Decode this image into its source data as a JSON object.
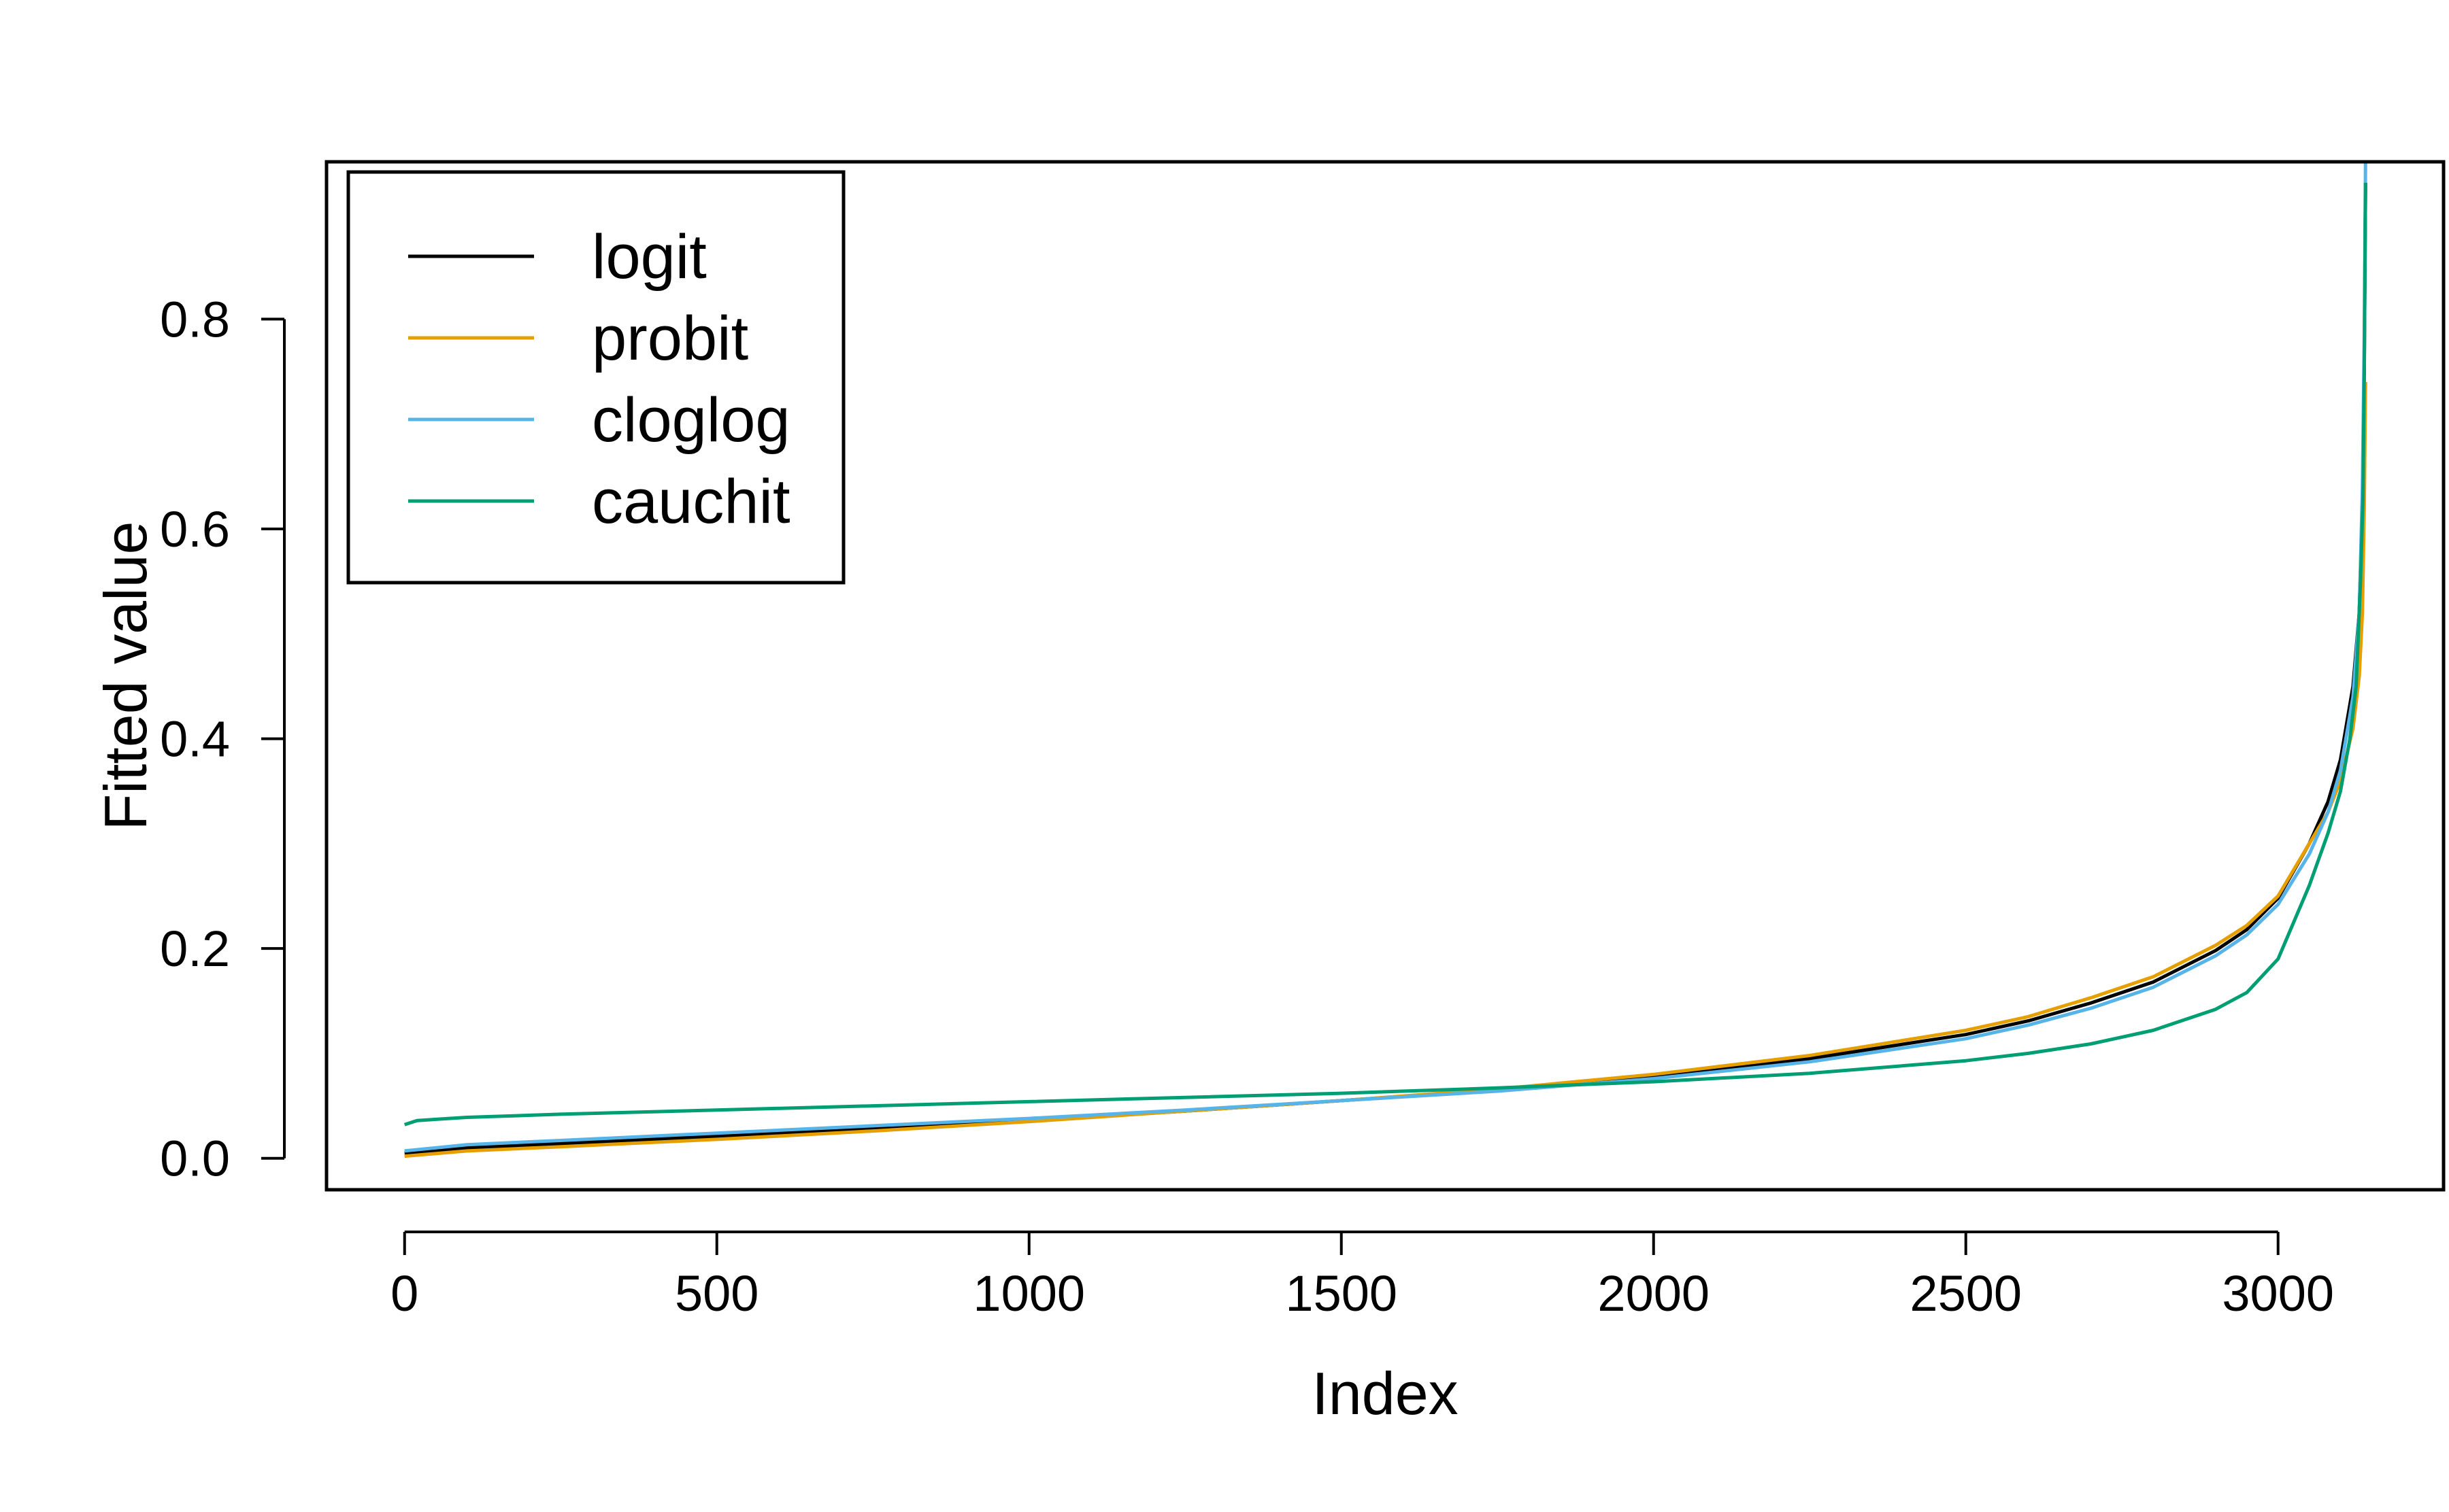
{
  "chart_data": {
    "type": "line",
    "title": "",
    "xlabel": "Index",
    "ylabel": "Fitted value",
    "xlim": [
      -125,
      3265
    ],
    "ylim": [
      -0.03,
      0.95
    ],
    "x_ticks": [
      0,
      500,
      1000,
      1500,
      2000,
      2500,
      3000
    ],
    "x_tick_labels": [
      "0",
      "500",
      "1000",
      "1500",
      "2000",
      "2500",
      "3000"
    ],
    "y_ticks": [
      0.0,
      0.2,
      0.4,
      0.6,
      0.8
    ],
    "y_tick_labels": [
      "0.0",
      "0.2",
      "0.4",
      "0.6",
      "0.8"
    ],
    "grid": false,
    "legend_position": "top-left",
    "series": [
      {
        "name": "logit",
        "color": "#000000",
        "x": [
          0,
          100,
          250,
          500,
          750,
          1000,
          1250,
          1500,
          1750,
          2000,
          2250,
          2500,
          2600,
          2700,
          2800,
          2900,
          2950,
          3000,
          3050,
          3080,
          3100,
          3120,
          3130,
          3135,
          3138,
          3140
        ],
        "y": [
          0.005,
          0.01,
          0.014,
          0.021,
          0.028,
          0.036,
          0.045,
          0.055,
          0.065,
          0.078,
          0.095,
          0.118,
          0.131,
          0.148,
          0.168,
          0.198,
          0.218,
          0.248,
          0.3,
          0.34,
          0.38,
          0.45,
          0.52,
          0.62,
          0.75,
          0.93
        ]
      },
      {
        "name": "probit",
        "color": "#E69F00",
        "x": [
          0,
          100,
          250,
          500,
          750,
          1000,
          1250,
          1500,
          1750,
          2000,
          2250,
          2500,
          2600,
          2700,
          2800,
          2900,
          2950,
          3000,
          3050,
          3080,
          3100,
          3120,
          3130,
          3135,
          3138,
          3140
        ],
        "y": [
          0.002,
          0.007,
          0.011,
          0.018,
          0.026,
          0.035,
          0.045,
          0.055,
          0.066,
          0.08,
          0.098,
          0.122,
          0.135,
          0.153,
          0.173,
          0.203,
          0.222,
          0.25,
          0.3,
          0.33,
          0.36,
          0.41,
          0.46,
          0.52,
          0.62,
          0.74
        ]
      },
      {
        "name": "cloglog",
        "color": "#56B4E9",
        "x": [
          0,
          100,
          250,
          500,
          750,
          1000,
          1250,
          1500,
          1750,
          2000,
          2250,
          2500,
          2600,
          2700,
          2800,
          2900,
          2950,
          3000,
          3050,
          3080,
          3100,
          3120,
          3130,
          3135,
          3138,
          3140
        ],
        "y": [
          0.007,
          0.013,
          0.017,
          0.024,
          0.031,
          0.038,
          0.046,
          0.055,
          0.064,
          0.076,
          0.092,
          0.114,
          0.127,
          0.143,
          0.163,
          0.193,
          0.213,
          0.242,
          0.29,
          0.33,
          0.37,
          0.44,
          0.52,
          0.64,
          0.78,
          0.95
        ]
      },
      {
        "name": "cauchit",
        "color": "#009E73",
        "x": [
          0,
          20,
          100,
          250,
          500,
          750,
          1000,
          1250,
          1500,
          1750,
          2000,
          2250,
          2500,
          2600,
          2700,
          2800,
          2900,
          2950,
          3000,
          3050,
          3080,
          3100,
          3115,
          3125,
          3132,
          3136,
          3138,
          3140
        ],
        "y": [
          0.032,
          0.036,
          0.039,
          0.042,
          0.046,
          0.05,
          0.054,
          0.058,
          0.062,
          0.067,
          0.073,
          0.081,
          0.093,
          0.1,
          0.109,
          0.122,
          0.142,
          0.158,
          0.19,
          0.26,
          0.31,
          0.35,
          0.4,
          0.45,
          0.55,
          0.63,
          0.75,
          0.93
        ]
      }
    ]
  }
}
